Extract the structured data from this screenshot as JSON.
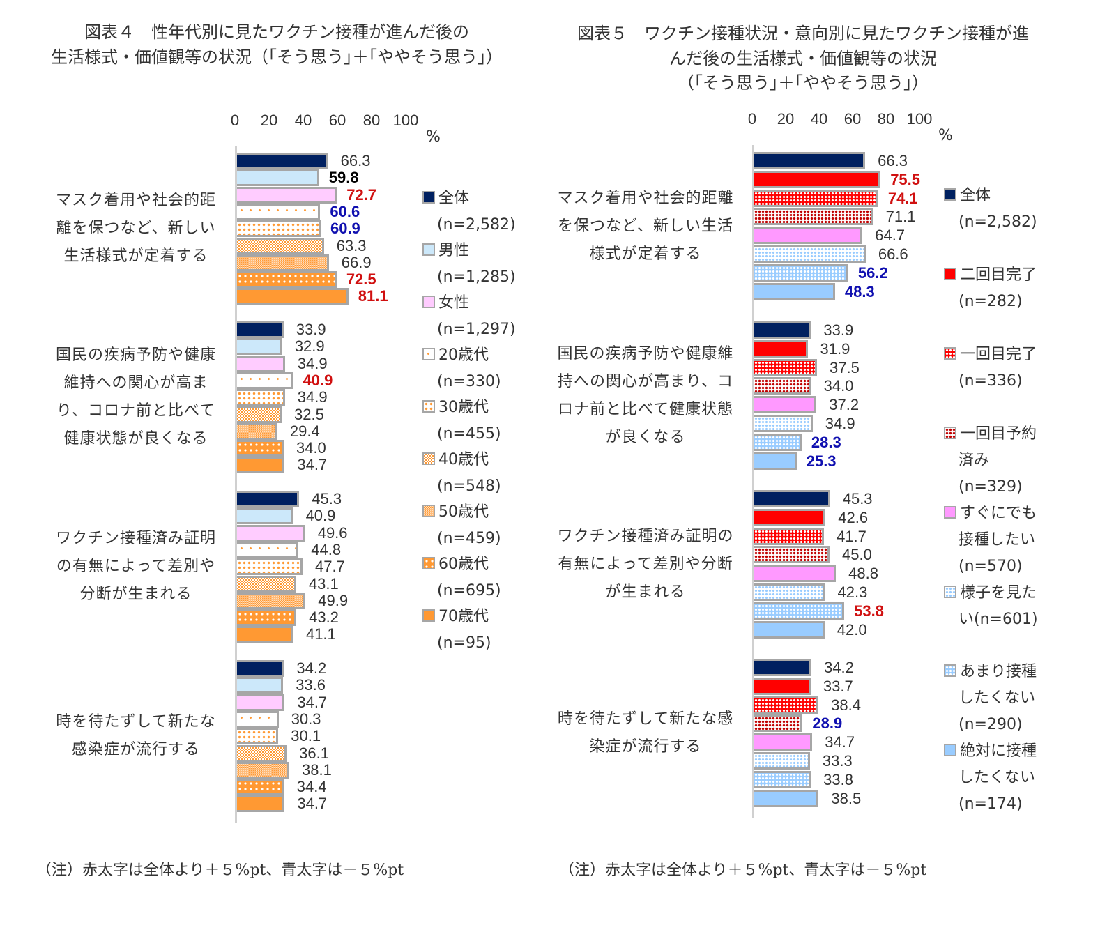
{
  "left": {
    "title_line1": "図表４　性年代別に見たワクチン接種が進んだ後の",
    "title_line2": "生活様式・価値観等の状況（｢そう思う｣＋｢ややそう思う｣）",
    "axis_ticks": [
      "0",
      "20",
      "40",
      "60",
      "80",
      "100"
    ],
    "axis_unit": "%",
    "categories": [
      "マスク着用や社会的距\n離を保つなど、新しい\n生活様式が定着する",
      "国民の疾病予防や健康\n維持への関心が高ま\nり、コロナ前と比べて\n健康状態が良くなる",
      "ワクチン接種済み証明\nの有無によって差別や\n分断が生まれる",
      "時を待たずして新たな\n感染症が流行する"
    ],
    "legend": [
      {
        "label": "全体",
        "n": "(n=2,582)"
      },
      {
        "label": "男性",
        "n": "(n=1,285)"
      },
      {
        "label": "女性",
        "n": "(n=1,297)"
      },
      {
        "label": "20歳代",
        "n": "(n=330)"
      },
      {
        "label": "30歳代",
        "n": "(n=455)"
      },
      {
        "label": "40歳代",
        "n": "(n=548)"
      },
      {
        "label": "50歳代",
        "n": "(n=459)"
      },
      {
        "label": "60歳代",
        "n": "(n=695)"
      },
      {
        "label": "70歳代",
        "n": "(n=95)"
      }
    ],
    "note": "（注）赤太字は全体より＋５%pt、青太字は－５%pt"
  },
  "right": {
    "title_line1": "図表５　ワクチン接種状況・意向別に見たワクチン接種が進",
    "title_line2": "んだ後の生活様式・価値観等の状況",
    "title_line3": "（｢そう思う｣＋｢ややそう思う｣）",
    "axis_ticks": [
      "0",
      "20",
      "40",
      "60",
      "80",
      "100"
    ],
    "axis_unit": "%",
    "categories": [
      "マスク着用や社会的距離\nを保つなど、新しい生活\n様式が定着する",
      "国民の疾病予防や健康維\n持への関心が高まり、コ\nロナ前と比べて健康状態\nが良くなる",
      "ワクチン接種済み証明の\n有無によって差別や分断\nが生まれる",
      "時を待たずして新たな感\n染症が流行する"
    ],
    "legend": [
      {
        "label": "全体",
        "n": "(n=2,582)"
      },
      {
        "label": "二回目完了",
        "n": "(n=282)"
      },
      {
        "label": "一回目完了",
        "n": "(n=336)"
      },
      {
        "label": "一回目予約",
        "label2": "済み",
        "n": "(n=329)"
      },
      {
        "label": "すぐにでも",
        "label2": "接種したい",
        "n": "(n=570)"
      },
      {
        "label": "様子を見た",
        "label2": "い(n=601)"
      },
      {
        "label": "あまり接種",
        "label2": "したくない",
        "n": "(n=290)"
      },
      {
        "label": "絶対に接種",
        "label2": "したくない",
        "n": "(n=174)"
      }
    ],
    "note": "（注）赤太字は全体より＋５%pt、青太字は－５%pt"
  },
  "colors": {
    "navy": "#002060",
    "light_blue": "#cce8fa",
    "pink": "#ffccff",
    "orange": "#ff9933",
    "red": "#ff0000",
    "magenta": "#ff99ff",
    "sky": "#99ccff",
    "bar_border": "#a6a6a6",
    "highlight_red": "#d01010",
    "highlight_blue": "#1010b0"
  },
  "chart_data": [
    {
      "type": "bar",
      "orientation": "horizontal",
      "title": "図表４　性年代別に見たワクチン接種が進んだ後の生活様式・価値観等の状況（｢そう思う｣＋｢ややそう思う｣）",
      "xlabel": "%",
      "xlim": [
        0,
        100
      ],
      "xticks": [
        0,
        20,
        40,
        60,
        80,
        100
      ],
      "grid": false,
      "legend_position": "right",
      "categories": [
        "マスク着用や社会的距離を保つなど、新しい生活様式が定着する",
        "国民の疾病予防や健康維持への関心が高まり、コロナ前と比べて健康状態が良くなる",
        "ワクチン接種済み証明の有無によって差別や分断が生まれる",
        "時を待たずして新たな感染症が流行する"
      ],
      "series": [
        {
          "name": "全体(n=2,582)",
          "values": [
            66.3,
            33.9,
            45.3,
            34.2
          ],
          "highlight": [
            "none",
            "none",
            "none",
            "none"
          ]
        },
        {
          "name": "男性(n=1,285)",
          "values": [
            59.8,
            32.9,
            40.9,
            33.6
          ],
          "highlight": [
            "black",
            "none",
            "none",
            "none"
          ]
        },
        {
          "name": "女性(n=1,297)",
          "values": [
            72.7,
            34.9,
            49.6,
            34.7
          ],
          "highlight": [
            "red",
            "none",
            "none",
            "none"
          ]
        },
        {
          "name": "20歳代(n=330)",
          "values": [
            60.6,
            40.9,
            44.8,
            30.3
          ],
          "highlight": [
            "blue",
            "red",
            "none",
            "none"
          ]
        },
        {
          "name": "30歳代(n=455)",
          "values": [
            60.9,
            34.9,
            47.7,
            30.1
          ],
          "highlight": [
            "blue",
            "none",
            "none",
            "none"
          ]
        },
        {
          "name": "40歳代(n=548)",
          "values": [
            63.3,
            32.5,
            43.1,
            36.1
          ],
          "highlight": [
            "none",
            "none",
            "none",
            "none"
          ]
        },
        {
          "name": "50歳代(n=459)",
          "values": [
            66.9,
            29.4,
            49.9,
            38.1
          ],
          "highlight": [
            "none",
            "none",
            "none",
            "none"
          ]
        },
        {
          "name": "60歳代(n=695)",
          "values": [
            72.5,
            34.0,
            43.2,
            34.4
          ],
          "highlight": [
            "red",
            "none",
            "none",
            "none"
          ]
        },
        {
          "name": "70歳代(n=95)",
          "values": [
            81.1,
            34.7,
            41.1,
            34.7
          ],
          "highlight": [
            "red",
            "none",
            "none",
            "none"
          ]
        }
      ],
      "annotations": [
        "（注）赤太字は全体より＋５%pt、青太字は－５%pt"
      ]
    },
    {
      "type": "bar",
      "orientation": "horizontal",
      "title": "図表５　ワクチン接種状況・意向別に見たワクチン接種が進んだ後の生活様式・価値観等の状況（｢そう思う｣＋｢ややそう思う｣）",
      "xlabel": "%",
      "xlim": [
        0,
        100
      ],
      "xticks": [
        0,
        20,
        40,
        60,
        80,
        100
      ],
      "grid": false,
      "legend_position": "right",
      "categories": [
        "マスク着用や社会的距離を保つなど、新しい生活様式が定着する",
        "国民の疾病予防や健康維持への関心が高まり、コロナ前と比べて健康状態が良くなる",
        "ワクチン接種済み証明の有無によって差別や分断が生まれる",
        "時を待たずして新たな感染症が流行する"
      ],
      "series": [
        {
          "name": "全体(n=2,582)",
          "values": [
            66.3,
            33.9,
            45.3,
            34.2
          ],
          "highlight": [
            "none",
            "none",
            "none",
            "none"
          ]
        },
        {
          "name": "二回目完了(n=282)",
          "values": [
            75.5,
            31.9,
            42.6,
            33.7
          ],
          "highlight": [
            "red",
            "none",
            "none",
            "none"
          ]
        },
        {
          "name": "一回目完了(n=336)",
          "values": [
            74.1,
            37.5,
            41.7,
            38.4
          ],
          "highlight": [
            "red",
            "none",
            "none",
            "none"
          ]
        },
        {
          "name": "一回目予約済み(n=329)",
          "values": [
            71.1,
            34.0,
            45.0,
            28.9
          ],
          "highlight": [
            "none",
            "none",
            "none",
            "blue"
          ]
        },
        {
          "name": "すぐにでも接種したい(n=570)",
          "values": [
            64.7,
            37.2,
            48.8,
            34.7
          ],
          "highlight": [
            "none",
            "none",
            "none",
            "none"
          ]
        },
        {
          "name": "様子を見たい(n=601)",
          "values": [
            66.6,
            34.9,
            42.3,
            33.3
          ],
          "highlight": [
            "none",
            "none",
            "none",
            "none"
          ]
        },
        {
          "name": "あまり接種したくない(n=290)",
          "values": [
            56.2,
            28.3,
            53.8,
            33.8
          ],
          "highlight": [
            "blue",
            "blue",
            "red",
            "none"
          ]
        },
        {
          "name": "絶対に接種したくない(n=174)",
          "values": [
            48.3,
            25.3,
            42.0,
            38.5
          ],
          "highlight": [
            "blue",
            "blue",
            "none",
            "none"
          ]
        }
      ],
      "annotations": [
        "（注）赤太字は全体より＋５%pt、青太字は－５%pt"
      ]
    }
  ]
}
